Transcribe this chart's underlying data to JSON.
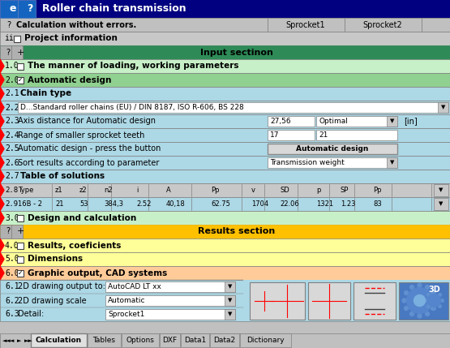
{
  "title": "Roller chain transmission",
  "title_bg": "#000080",
  "title_fg": "#FFFFFF",
  "gray_bg": "#C0C0C0",
  "light_gray": "#D4D4D4",
  "input_section_bg": "#2E8B57",
  "light_green": "#C8F0C8",
  "mid_green": "#90D090",
  "blue_bg": "#ADD8E6",
  "yellow_bg": "#FFFF99",
  "yellow_section": "#FFC000",
  "peach_bg": "#FFCC99",
  "white": "#FFFFFF",
  "table_header_bg": "#C8C8C8",
  "tabs": [
    "Calculation",
    "Tables",
    "Options",
    "DXF",
    "Data1",
    "Data2",
    "Dictionary"
  ]
}
